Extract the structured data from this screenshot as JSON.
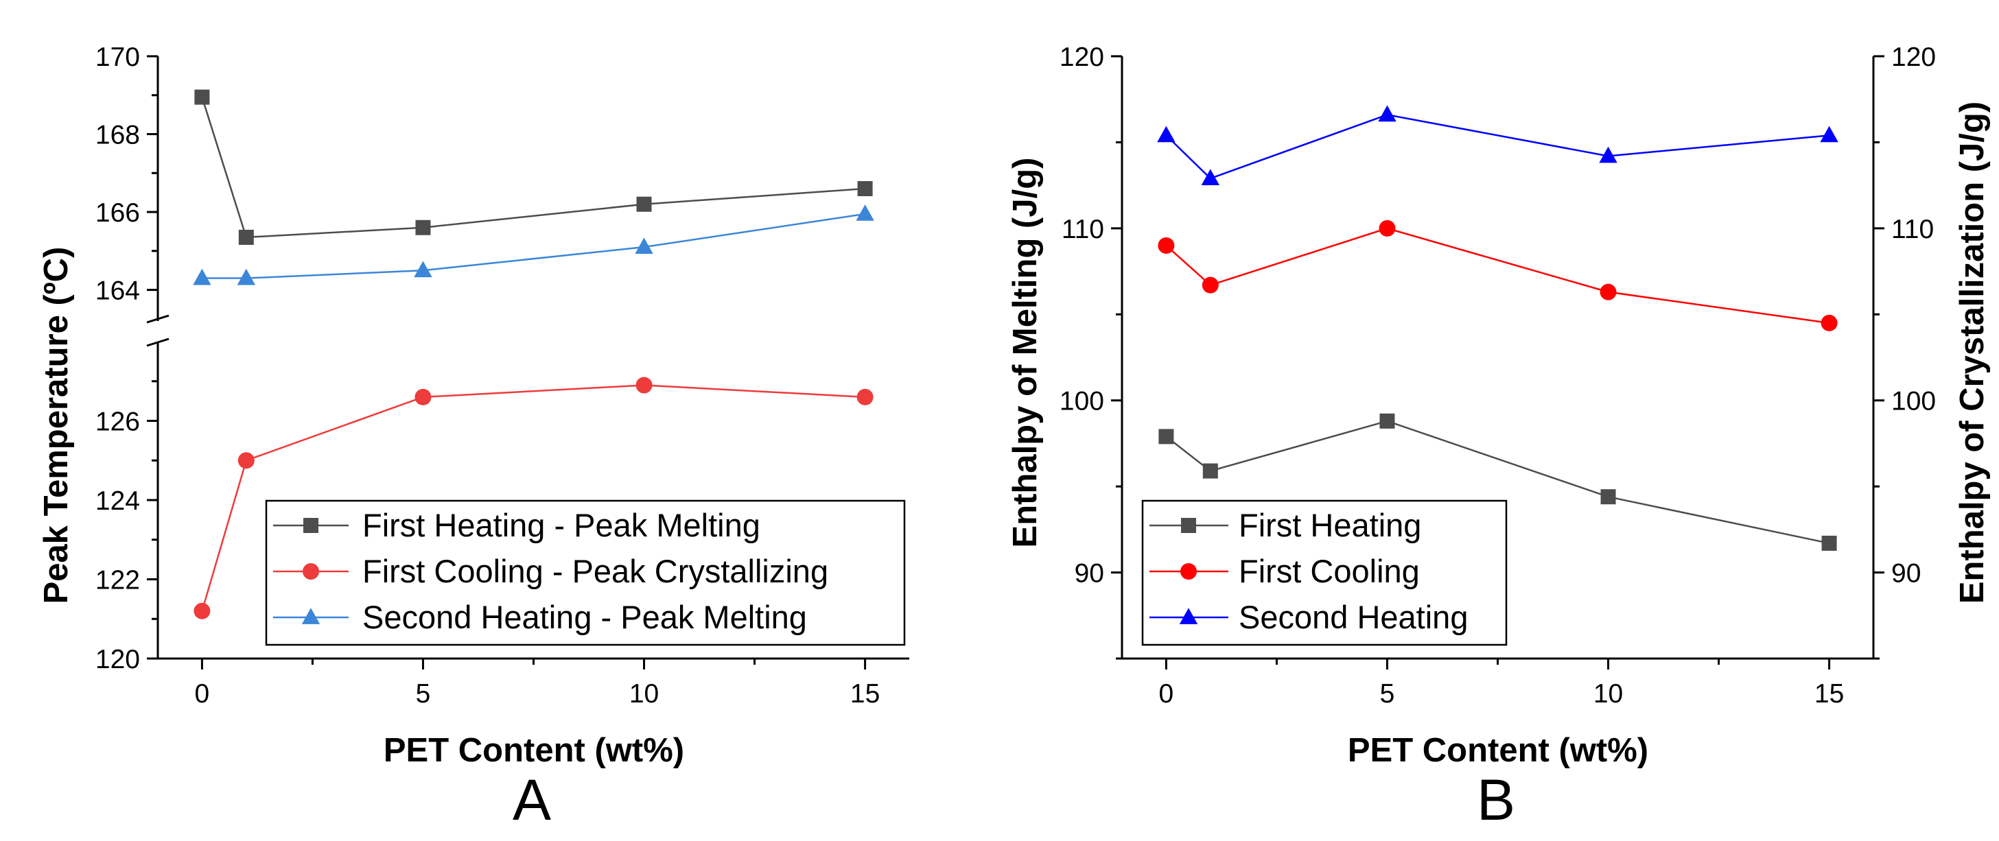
{
  "chart_data": [
    {
      "type": "line",
      "panel_label": "A",
      "xlabel": "PET Content (wt%)",
      "ylabel": "Peak Temperature (ºC)",
      "x": [
        0,
        1,
        5,
        10,
        15
      ],
      "x_ticks": [
        "0",
        "5",
        "10",
        "15"
      ],
      "x_tick_values": [
        0,
        5,
        10,
        15
      ],
      "xlim": [
        -1,
        16
      ],
      "upper_axis": {
        "ylim": [
          163.2,
          170
        ],
        "ticks": [
          "164",
          "166",
          "168",
          "170"
        ],
        "tick_values": [
          164,
          166,
          168,
          170
        ]
      },
      "lower_axis": {
        "ylim": [
          120,
          128
        ],
        "ticks": [
          "120",
          "122",
          "124",
          "126"
        ],
        "tick_values": [
          120,
          122,
          124,
          126
        ]
      },
      "axis_break": true,
      "legend_position": "bottom-right",
      "series": [
        {
          "name": "First Heating - Peak Melting",
          "marker": "square",
          "color": "#4d4d4d",
          "axis": "upper",
          "values": [
            168.95,
            165.35,
            165.6,
            166.2,
            166.6
          ]
        },
        {
          "name": "First Cooling - Peak Crystallizing",
          "marker": "circle",
          "color": "#ee3b3b",
          "axis": "lower",
          "values": [
            121.2,
            125.0,
            126.6,
            126.9,
            126.6
          ]
        },
        {
          "name": "Second Heating - Peak Melting",
          "marker": "triangle",
          "color": "#3b86d8",
          "axis": "upper",
          "values": [
            164.3,
            164.3,
            164.5,
            165.1,
            165.95
          ]
        }
      ]
    },
    {
      "type": "line",
      "panel_label": "B",
      "xlabel": "PET Content (wt%)",
      "ylabel": "Enthalpy of Melting (J/g)",
      "ylabel_right": "Enthalpy of Crystallization (J/g)",
      "x": [
        0,
        1,
        5,
        10,
        15
      ],
      "x_ticks": [
        "0",
        "5",
        "10",
        "15"
      ],
      "x_tick_values": [
        0,
        5,
        10,
        15
      ],
      "xlim": [
        -1,
        16
      ],
      "ylim": [
        85,
        120
      ],
      "y_ticks": [
        "90",
        "100",
        "110",
        "120"
      ],
      "y_tick_values": [
        90,
        100,
        110,
        120
      ],
      "y_right_ticks": [
        "90",
        "100",
        "110",
        "120"
      ],
      "legend_position": "bottom-left",
      "series": [
        {
          "name": "First Heating",
          "marker": "square",
          "color": "#4d4d4d",
          "values": [
            97.9,
            95.9,
            98.8,
            94.4,
            91.7
          ]
        },
        {
          "name": "First Cooling",
          "marker": "circle",
          "color": "#ff0000",
          "values": [
            109.0,
            106.7,
            110.0,
            106.3,
            104.5
          ]
        },
        {
          "name": "Second Heating",
          "marker": "triangle",
          "color": "#0000ff",
          "values": [
            115.4,
            112.9,
            116.6,
            114.2,
            115.4
          ]
        }
      ]
    }
  ]
}
